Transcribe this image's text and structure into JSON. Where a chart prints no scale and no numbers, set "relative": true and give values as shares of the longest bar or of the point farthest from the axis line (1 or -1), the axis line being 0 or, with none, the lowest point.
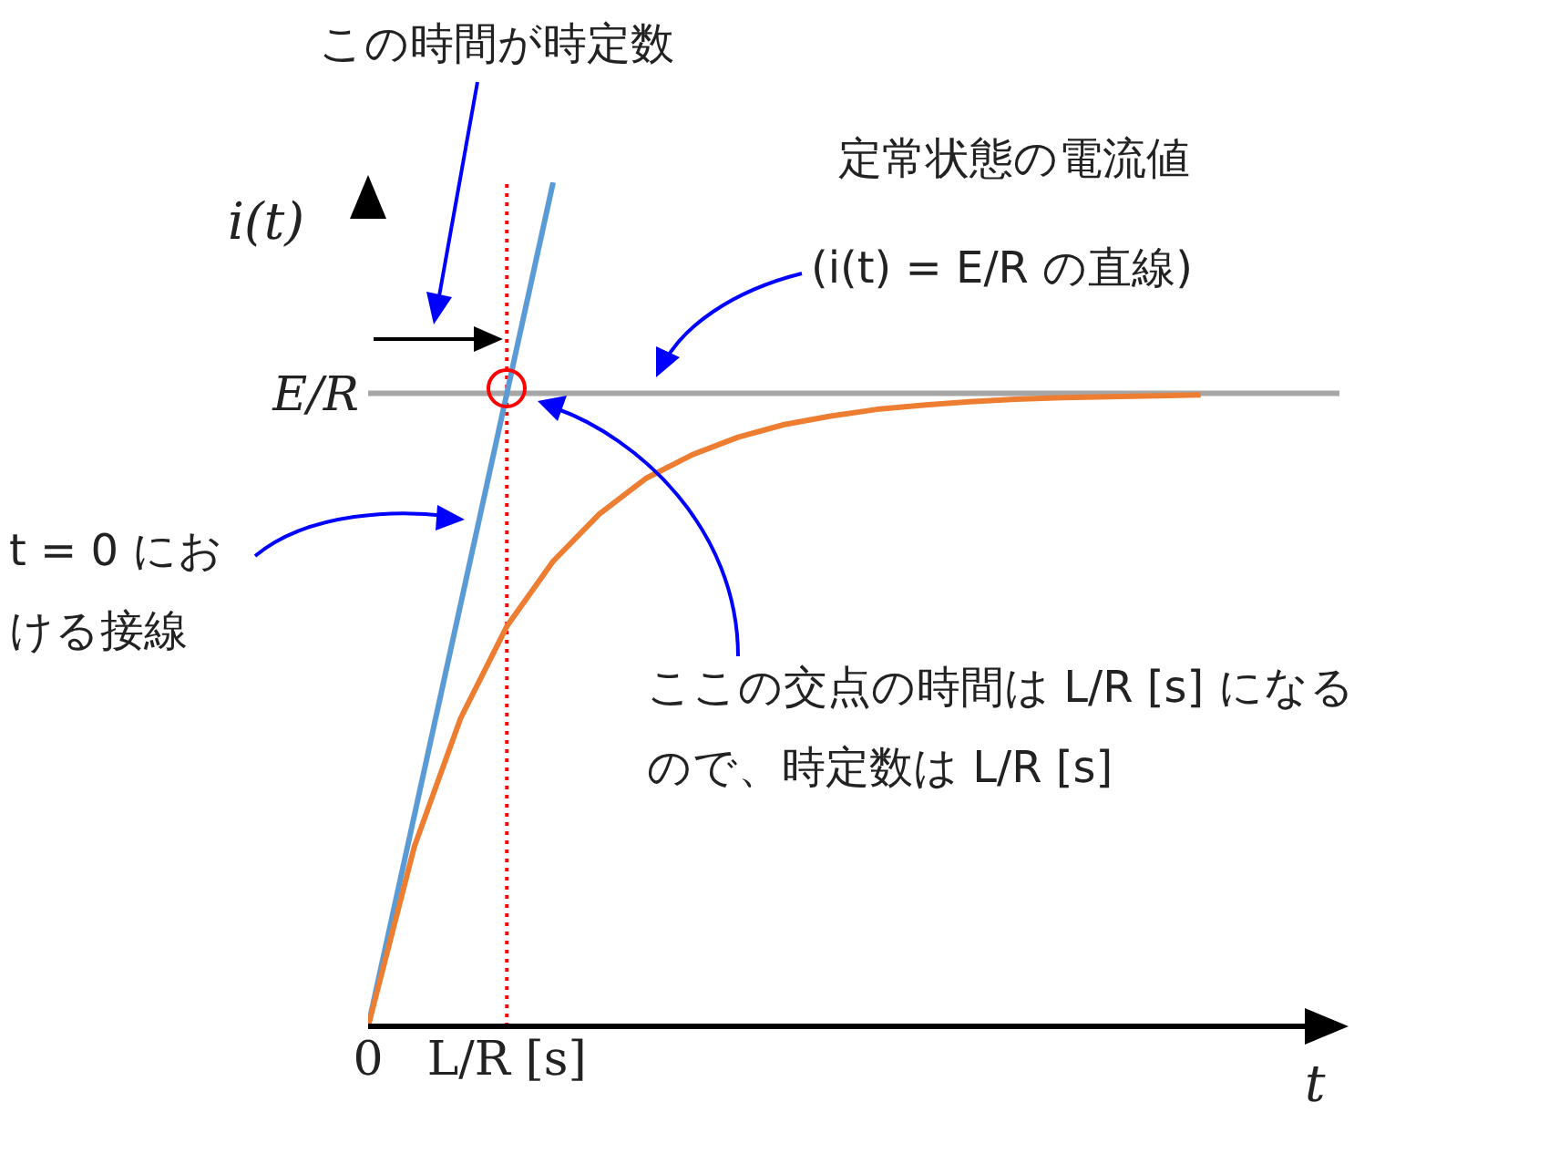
{
  "chart_data": {
    "type": "line",
    "relative": true,
    "xlabel": "t",
    "ylabel": "i(t)",
    "grid": false,
    "marker": "none",
    "line_style": "solid",
    "categories": [
      "0",
      null,
      null,
      "L/R [s]",
      null,
      null,
      null,
      null,
      null,
      null,
      null,
      null,
      null,
      null,
      null,
      null,
      null,
      null,
      null,
      null,
      null,
      null
    ],
    "series": [
      {
        "color": "#5b9bd5",
        "values": [
          0,
          null,
          null,
          null,
          1,
          null,
          null,
          null,
          null,
          null,
          null,
          null,
          null,
          null,
          null,
          null,
          null,
          null,
          null,
          null,
          null,
          null
        ]
      },
      {
        "color": "#ed7d31",
        "values": [
          0,
          0.213,
          0.365,
          0.474,
          0.551,
          0.607,
          0.649,
          0.677,
          0.698,
          0.713,
          0.723,
          0.731,
          0.736,
          0.74,
          0.743,
          0.745,
          0.746,
          0.747,
          0.748,
          null,
          null,
          null
        ]
      }
    ],
    "ref_lines": [
      {
        "axis": "y",
        "value": 0.75,
        "label": "E/R",
        "color": "#a6a6a6",
        "line_style": "solid"
      },
      {
        "axis": "x",
        "value": "L/R [s]",
        "color": "#ff0000",
        "line_style": "dotted"
      }
    ],
    "annotations": [
      "この時間が時定数",
      "定常状態の電流値",
      "(i(t) = E/R の直線)",
      "t = 0 における接線",
      "ここの交点の時間は L/R [s] になるので、時定数は L/R [s]"
    ]
  }
}
